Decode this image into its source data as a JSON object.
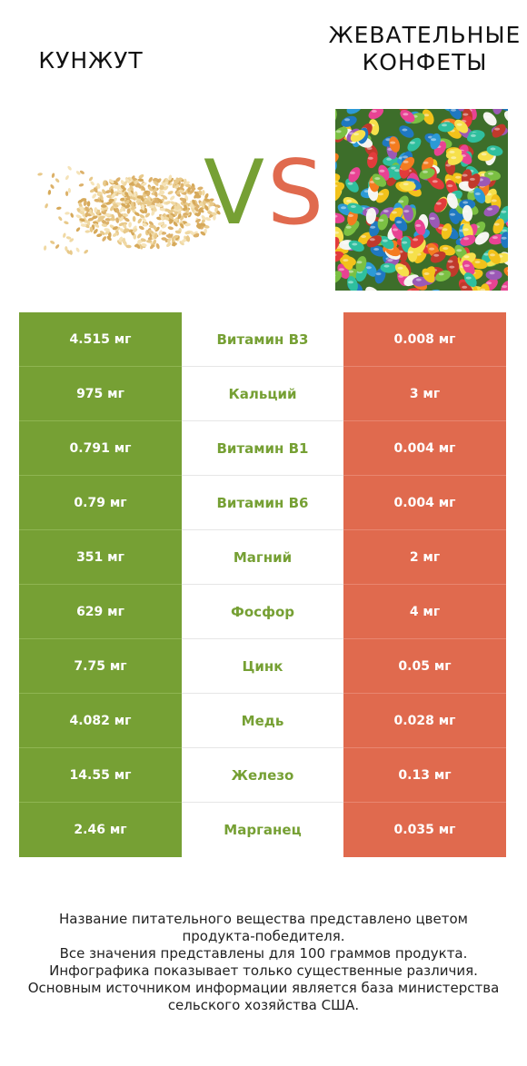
{
  "left_food": {
    "title": "КУНЖУТ",
    "icon": "sesame-seeds-image"
  },
  "right_food": {
    "title_line1": "ЖЕВАТЕЛЬНЫЕ",
    "title_line2": "КОНФЕТЫ",
    "icon": "jelly-beans-image"
  },
  "vs": {
    "v": "V",
    "s": "S"
  },
  "colors": {
    "left": "#76a034",
    "right": "#e06a4e"
  },
  "rows": [
    {
      "left": "4.515 мг",
      "nutrient": "Витамин B3",
      "right": "0.008 мг"
    },
    {
      "left": "975 мг",
      "nutrient": "Кальций",
      "right": "3 мг"
    },
    {
      "left": "0.791 мг",
      "nutrient": "Витамин B1",
      "right": "0.004 мг"
    },
    {
      "left": "0.79 мг",
      "nutrient": "Витамин B6",
      "right": "0.004 мг"
    },
    {
      "left": "351 мг",
      "nutrient": "Магний",
      "right": "2 мг"
    },
    {
      "left": "629 мг",
      "nutrient": "Фосфор",
      "right": "4 мг"
    },
    {
      "left": "7.75 мг",
      "nutrient": "Цинк",
      "right": "0.05 мг"
    },
    {
      "left": "4.082 мг",
      "nutrient": "Медь",
      "right": "0.028 мг"
    },
    {
      "left": "14.55 мг",
      "nutrient": "Железо",
      "right": "0.13 мг"
    },
    {
      "left": "2.46 мг",
      "nutrient": "Марганец",
      "right": "0.035 мг"
    }
  ],
  "footer": {
    "line1": "Название питательного вещества представлено цветом",
    "line2": "продукта-победителя.",
    "line3": "Все значения представлены для 100 граммов продукта.",
    "line4": "Инфографика показывает только существенные различия.",
    "line5": "Основным источником информации является база министерства",
    "line6": "сельского хозяйства США."
  }
}
